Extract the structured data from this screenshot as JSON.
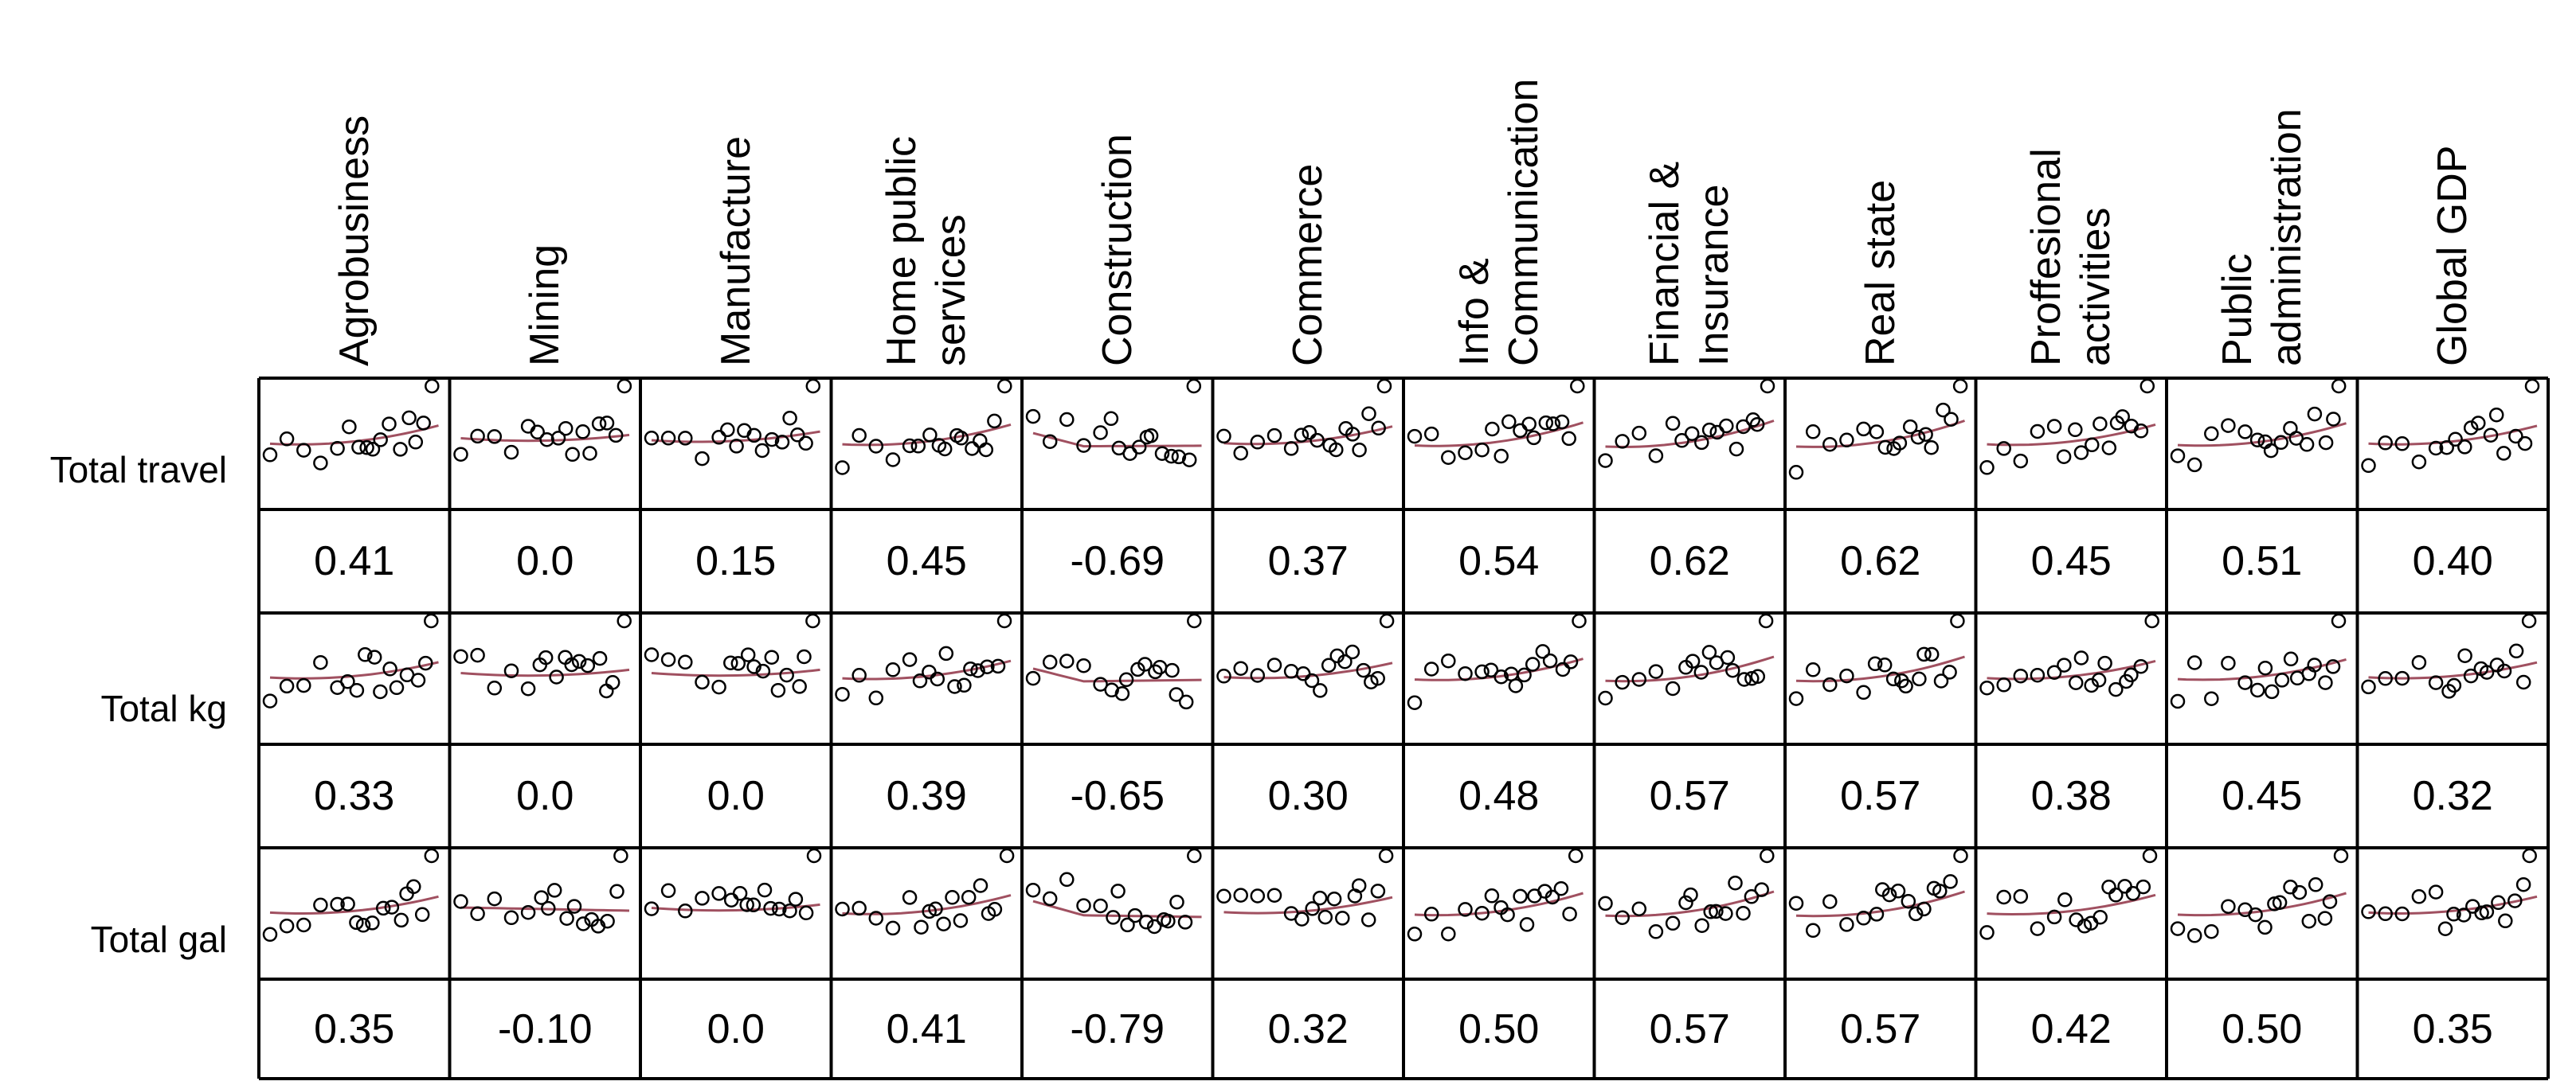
{
  "chart_data": {
    "type": "scatter",
    "title": "",
    "description_columns": [
      "Agrobusiness",
      "Mining",
      "Manufacture",
      "Home public services",
      "Construction",
      "Commerce",
      "Info & Communication",
      "Financial & Insurance",
      "Real state",
      "Proffesional activities",
      "Public administration",
      "Global GDP"
    ],
    "columns": [
      [
        "Agrobusiness"
      ],
      [
        "Mining"
      ],
      [
        "Manufacture"
      ],
      [
        "Home public",
        "services"
      ],
      [
        "Construction"
      ],
      [
        "Commerce"
      ],
      [
        "Info &",
        "Communication"
      ],
      [
        "Financial &",
        "Insurance"
      ],
      [
        "Real state"
      ],
      [
        "Proffesional",
        "activities"
      ],
      [
        "Public",
        "administration"
      ],
      [
        "Global GDP"
      ]
    ],
    "rows": [
      "Total travel",
      "Total kg",
      "Total gal"
    ],
    "correlations": [
      [
        "0.41",
        "0.0",
        "0.15",
        "0.45",
        "-0.69",
        "0.37",
        "0.54",
        "0.62",
        "0.62",
        "0.45",
        "0.51",
        "0.40"
      ],
      [
        "0.33",
        "0.0",
        "0.0",
        "0.39",
        "-0.65",
        "0.30",
        "0.48",
        "0.57",
        "0.57",
        "0.38",
        "0.45",
        "0.32"
      ],
      [
        "0.35",
        "-0.10",
        "0.0",
        "0.41",
        "-0.79",
        "0.32",
        "0.50",
        "0.57",
        "0.57",
        "0.42",
        "0.50",
        "0.35"
      ]
    ],
    "point_color": "#000000",
    "smooth_color": "#a05060"
  }
}
